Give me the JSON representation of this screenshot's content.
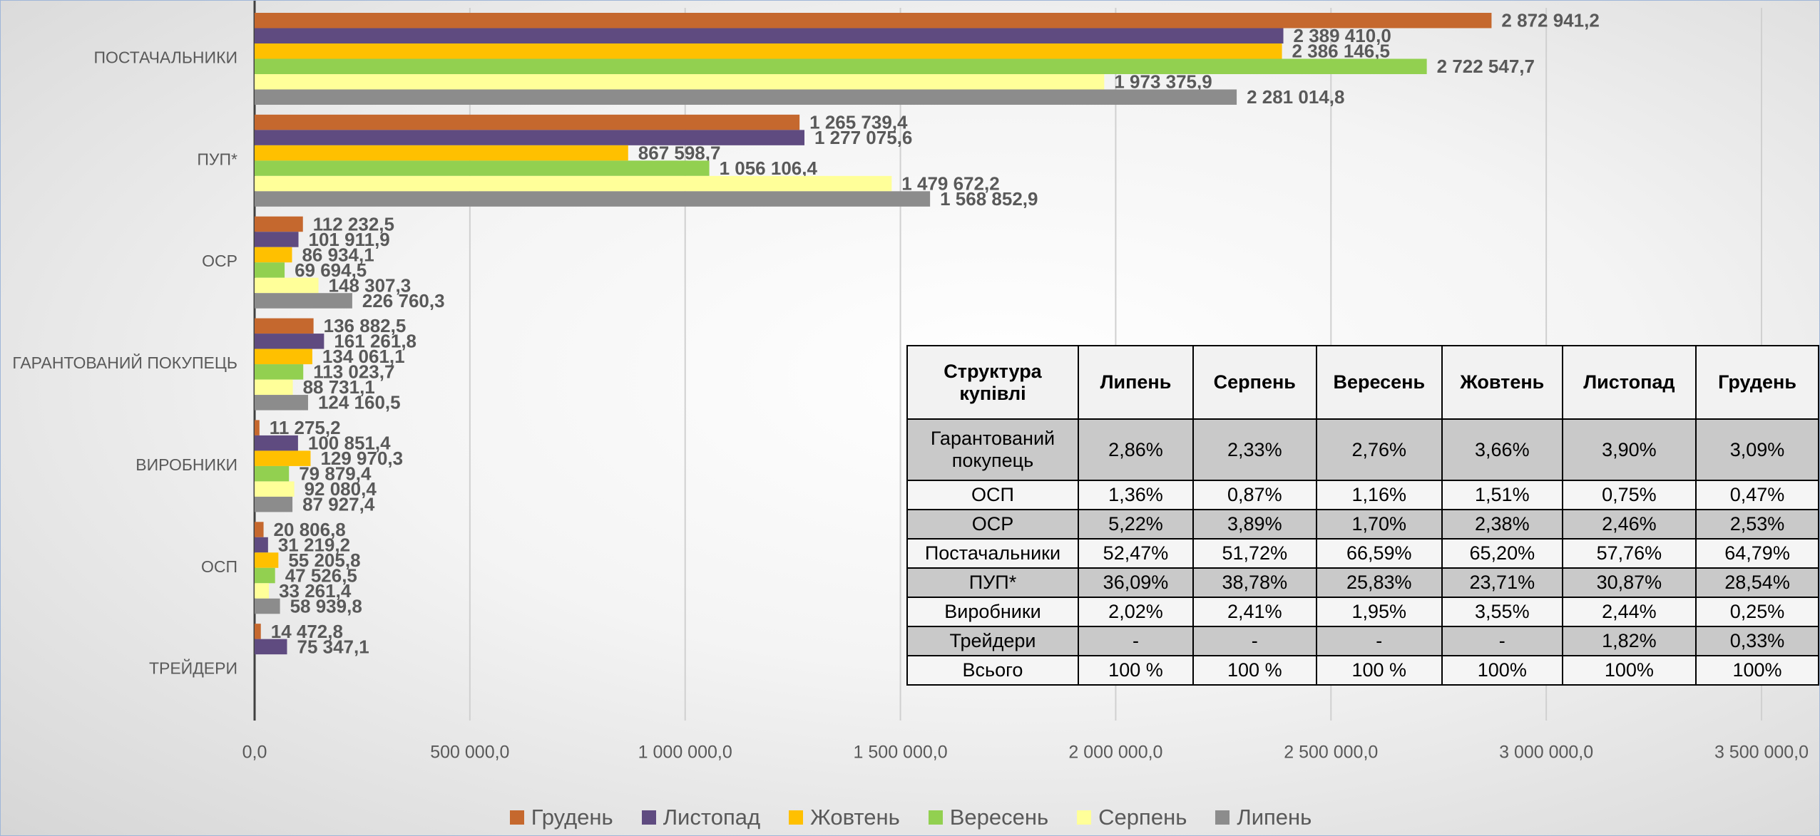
{
  "chart_data": {
    "type": "hbar",
    "categories": [
      "ПОСТАЧАЛЬНИКИ",
      "ПУП*",
      "ОСР",
      "ГАРАНТОВАНИЙ ПОКУПЕЦЬ",
      "ВИРОБНИКИ",
      "ОСП",
      "ТРЕЙДЕРИ"
    ],
    "series": [
      {
        "name": "Грудень",
        "color": "#c5682e",
        "values": [
          2872941.2,
          1265739.4,
          112232.5,
          136882.5,
          11275.2,
          20806.8,
          14472.8
        ],
        "value_labels": [
          "2 872 941,2",
          "1 265 739,4",
          "112 232,5",
          "136 882,5",
          "11 275,2",
          "20 806,8",
          "14 472,8"
        ]
      },
      {
        "name": "Листопад",
        "color": "#5f4b80",
        "values": [
          2389410.0,
          1277075.6,
          101911.9,
          161261.8,
          100851.4,
          31219.2,
          75347.1
        ],
        "value_labels": [
          "2 389 410,0",
          "1 277 075,6",
          "101 911,9",
          "161 261,8",
          "100 851,4",
          "31 219,2",
          "75 347,1"
        ]
      },
      {
        "name": "Жовтень",
        "color": "#ffc000",
        "values": [
          2386146.5,
          867598.7,
          86934.1,
          134061.1,
          129970.3,
          55205.8,
          null
        ],
        "value_labels": [
          "2 386 146,5",
          "867 598,7",
          "86 934,1",
          "134 061,1",
          "129 970,3",
          "55 205,8",
          null
        ]
      },
      {
        "name": "Вересень",
        "color": "#92d050",
        "values": [
          2722547.7,
          1056106.4,
          69694.5,
          113023.7,
          79879.4,
          47526.5,
          null
        ],
        "value_labels": [
          "2 722 547,7",
          "1 056 106,4",
          "69 694,5",
          "113 023,7",
          "79 879,4",
          "47 526,5",
          null
        ]
      },
      {
        "name": "Серпень",
        "color": "#ffff99",
        "values": [
          1973375.9,
          1479672.2,
          148307.3,
          88731.1,
          92080.4,
          33261.4,
          null
        ],
        "value_labels": [
          "1 973 375,9",
          "1 479 672,2",
          "148 307,3",
          "88 731,1",
          "92 080,4",
          "33 261,4",
          null
        ]
      },
      {
        "name": "Липень",
        "color": "#8c8c8c",
        "values": [
          2281014.8,
          1568852.9,
          226760.3,
          124160.5,
          87927.4,
          58939.8,
          null
        ],
        "value_labels": [
          "2 281 014,8",
          "1 568 852,9",
          "226 760,3",
          "124 160,5",
          "87 927,4",
          "58 939,8",
          null
        ]
      }
    ],
    "xlim": [
      0,
      3500000
    ],
    "xticks": [
      {
        "value": 0,
        "label": "0,0"
      },
      {
        "value": 500000,
        "label": "500 000,0"
      },
      {
        "value": 1000000,
        "label": "1 000 000,0"
      },
      {
        "value": 1500000,
        "label": "1 500 000,0"
      },
      {
        "value": 2000000,
        "label": "2 000 000,0"
      },
      {
        "value": 2500000,
        "label": "2 500 000,0"
      },
      {
        "value": 3000000,
        "label": "3 000 000,0"
      },
      {
        "value": 3500000,
        "label": "3 500 000,0"
      }
    ],
    "grid": true,
    "legend": "bottom"
  },
  "table": {
    "header": [
      "Структура купівлі",
      "Липень",
      "Серпень",
      "Вересень",
      "Жовтень",
      "Листопад",
      "Грудень"
    ],
    "rows": [
      [
        "Гарантований покупець",
        "2,86%",
        "2,33%",
        "2,76%",
        "3,66%",
        "3,90%",
        "3,09%"
      ],
      [
        "ОСП",
        "1,36%",
        "0,87%",
        "1,16%",
        "1,51%",
        "0,75%",
        "0,47%"
      ],
      [
        "ОСР",
        "5,22%",
        "3,89%",
        "1,70%",
        "2,38%",
        "2,46%",
        "2,53%"
      ],
      [
        "Постачальники",
        "52,47%",
        "51,72%",
        "66,59%",
        "65,20%",
        "57,76%",
        "64,79%"
      ],
      [
        "ПУП*",
        "36,09%",
        "38,78%",
        "25,83%",
        "23,71%",
        "30,87%",
        "28,54%"
      ],
      [
        "Виробники",
        "2,02%",
        "2,41%",
        "1,95%",
        "3,55%",
        "2,44%",
        "0,25%"
      ],
      [
        "Трейдери",
        "-",
        "-",
        "-",
        "-",
        "1,82%",
        "0,33%"
      ],
      [
        "Всього",
        "100 %",
        "100 %",
        "100 %",
        "100%",
        "100%",
        "100%"
      ]
    ]
  }
}
